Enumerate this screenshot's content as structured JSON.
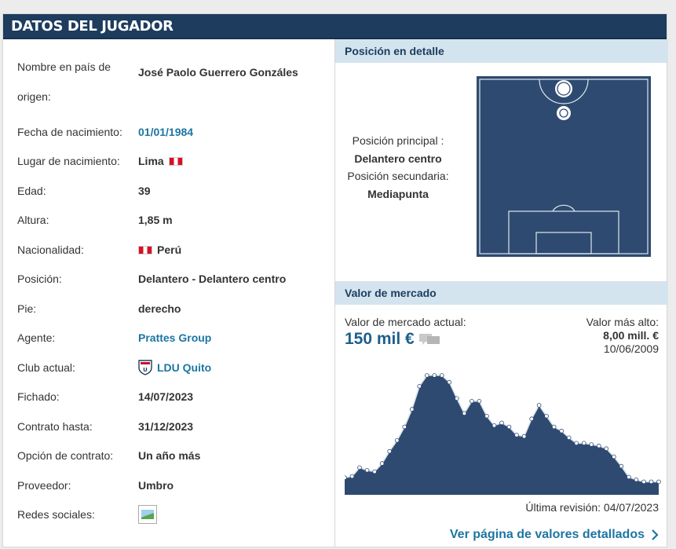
{
  "header": {
    "title": "DATOS DEL JUGADOR"
  },
  "rows": [
    {
      "label": "Nombre en país de origen:",
      "value": "José Paolo Guerrero Gonzáles"
    },
    {
      "label": "Fecha de nacimiento:",
      "value": "01/01/1984"
    },
    {
      "label": "Lugar de nacimiento:",
      "value": "Lima"
    },
    {
      "label": "Edad:",
      "value": "39"
    },
    {
      "label": "Altura:",
      "value": "1,85 m"
    },
    {
      "label": "Nacionalidad:",
      "value": "Perú"
    },
    {
      "label": "Posición:",
      "value": "Delantero - Delantero centro"
    },
    {
      "label": "Pie:",
      "value": "derecho"
    },
    {
      "label": "Agente:",
      "value": "Prattes Group"
    },
    {
      "label": "Club actual:",
      "value": "LDU Quito"
    },
    {
      "label": "Fichado:",
      "value": "14/07/2023"
    },
    {
      "label": "Contrato hasta:",
      "value": "31/12/2023"
    },
    {
      "label": "Opción de contrato:",
      "value": "Un año más"
    },
    {
      "label": "Proveedor:",
      "value": "Umbro"
    },
    {
      "label": "Redes sociales:",
      "value": ""
    }
  ],
  "position": {
    "heading": "Posición en detalle",
    "main_label": "Posición principal :",
    "main_value": "Delantero centro",
    "secondary_label": "Posición secundaria:",
    "secondary_value": "Mediapunta"
  },
  "market": {
    "heading": "Valor de mercado",
    "current_label": "Valor de mercado actual:",
    "current_value": "150 mil €",
    "highest_label": "Valor más alto:",
    "highest_value": "8,00 mill. €",
    "highest_date": "10/06/2009",
    "revision": "Última revisión: 04/07/2023",
    "more_link": "Ver página de valores detallados"
  },
  "colors": {
    "header": "#1d3c5e",
    "subhead": "#d3e4ef",
    "link": "#1d75a3",
    "pitch": "#2e4a70"
  },
  "icons": [
    "peru-flag-icon",
    "ldu-quito-crest-icon",
    "social-image-icon",
    "comment-icon",
    "chevron-right-icon"
  ],
  "chart_data": {
    "type": "area",
    "title": "",
    "xlabel": "",
    "ylabel": "",
    "y": [
      0.45,
      0.55,
      1.2,
      1.0,
      0.9,
      1.5,
      2.4,
      3.2,
      4.2,
      5.5,
      7.2,
      8.0,
      8.0,
      8.0,
      7.5,
      6.3,
      5.2,
      6.1,
      6.1,
      5.0,
      4.3,
      4.5,
      4.2,
      3.6,
      3.5,
      4.8,
      5.8,
      5.0,
      4.2,
      3.9,
      3.4,
      3.0,
      3.0,
      2.9,
      2.8,
      2.6,
      2.0,
      1.3,
      0.5,
      0.3,
      0.15,
      0.15,
      0.15
    ]
  }
}
